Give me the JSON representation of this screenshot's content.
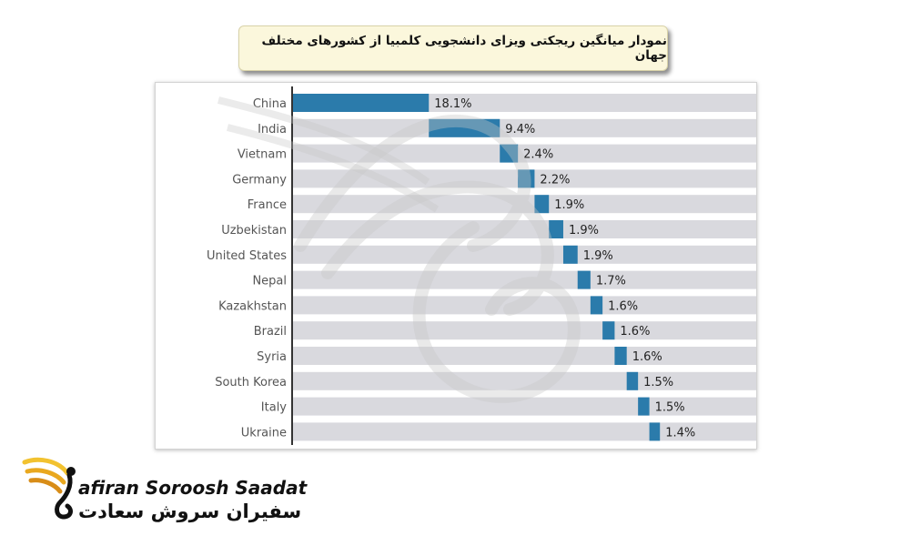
{
  "title": "نمودار میانگین ریجکتی ویزای دانشجویی کلمبیا از کشورهای مختلف جهان",
  "chart_data": {
    "type": "bar",
    "orientation": "horizontal",
    "categories": [
      "China",
      "India",
      "Vietnam",
      "Germany",
      "France",
      "Uzbekistan",
      "United States",
      "Nepal",
      "Kazakhstan",
      "Brazil",
      "Syria",
      "South Korea",
      "Italy",
      "Ukraine"
    ],
    "values": [
      18.1,
      9.4,
      2.4,
      2.2,
      1.9,
      1.9,
      1.9,
      1.7,
      1.6,
      1.6,
      1.6,
      1.5,
      1.5,
      1.4
    ],
    "labels": [
      "18.1%",
      "9.4%",
      "2.4%",
      "2.2%",
      "1.9%",
      "1.9%",
      "1.9%",
      "1.7%",
      "1.6%",
      "1.6%",
      "1.6%",
      "1.5%",
      "1.5%",
      "1.4%"
    ],
    "style": "waterfall",
    "colors": {
      "bar": "#2b7bab",
      "track": "#d9d9de",
      "axis": "#333333"
    }
  },
  "logo": {
    "name_en": "afiran Soroosh Saadat",
    "name_fa": "سفیران سروش سعادت"
  }
}
